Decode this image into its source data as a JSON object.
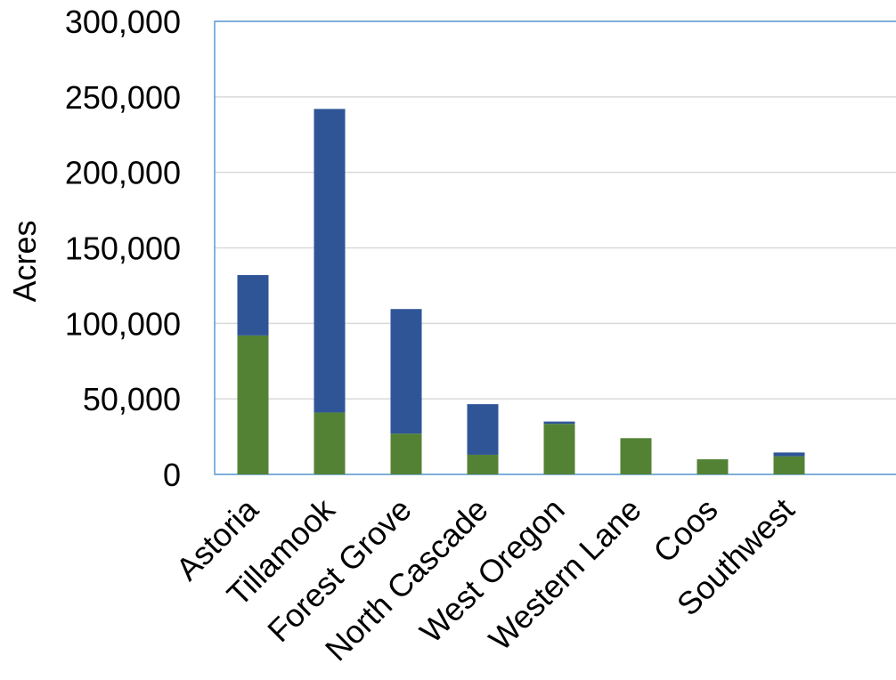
{
  "chart_data": {
    "type": "bar",
    "stacked": true,
    "title": "",
    "xlabel": "",
    "ylabel": "Acres",
    "ylim": [
      0,
      300000
    ],
    "y_ticks": [
      0,
      50000,
      100000,
      150000,
      200000,
      250000,
      300000
    ],
    "y_tick_labels": [
      "0",
      "50,000",
      "100,000",
      "150,000",
      "200,000",
      "250,000",
      "300,000"
    ],
    "grid": true,
    "legend": "none",
    "categories": [
      "Astoria",
      "Tillamook",
      "Forest Grove",
      "North Cascade",
      "West Oregon",
      "Western Lane",
      "Coos",
      "Southwest"
    ],
    "series": [
      {
        "color": "#548235",
        "values": [
          92000,
          41000,
          27000,
          13000,
          33500,
          24000,
          10000,
          12000
        ]
      },
      {
        "color": "#2F5597",
        "values": [
          40000,
          201000,
          82500,
          33500,
          1500,
          0,
          0,
          2500
        ]
      }
    ],
    "colors": {
      "gridline": "#d9d9d9",
      "plot_border": "#5b9bd5",
      "baseline": "#d9d9d9"
    }
  }
}
